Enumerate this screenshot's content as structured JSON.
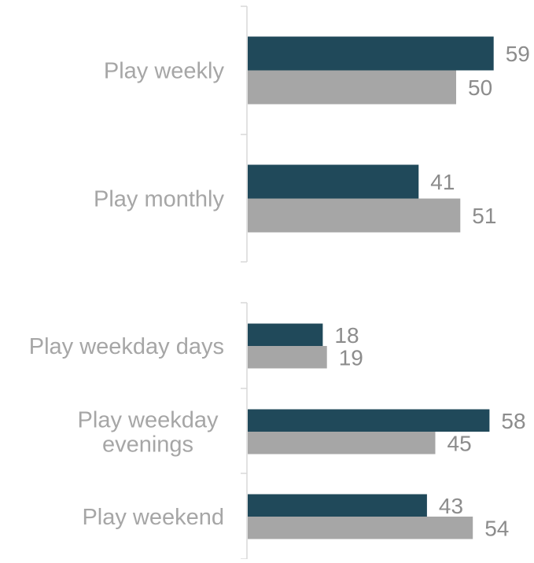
{
  "colors": {
    "series_1": "#20495a",
    "series_2": "#a6a6a6",
    "category_text": "#a6a6a6",
    "value_text": "#8c8c8c",
    "axis": "#d9d9d9"
  },
  "chart_data": [
    {
      "type": "bar",
      "orientation": "horizontal",
      "categories": [
        [
          "Play weekly"
        ],
        [
          "Play monthly"
        ]
      ],
      "series": [
        {
          "values": [
            59,
            41
          ]
        },
        {
          "values": [
            50,
            51
          ]
        }
      ],
      "data_labels": true,
      "legend": "none",
      "grid": false
    },
    {
      "type": "bar",
      "orientation": "horizontal",
      "categories": [
        [
          "Play weekday days"
        ],
        [
          "Play weekday",
          "evenings"
        ],
        [
          "Play weekend"
        ]
      ],
      "series": [
        {
          "values": [
            18,
            58,
            43
          ]
        },
        {
          "values": [
            19,
            45,
            54
          ]
        }
      ],
      "data_labels": true,
      "legend": "none",
      "grid": false
    }
  ]
}
